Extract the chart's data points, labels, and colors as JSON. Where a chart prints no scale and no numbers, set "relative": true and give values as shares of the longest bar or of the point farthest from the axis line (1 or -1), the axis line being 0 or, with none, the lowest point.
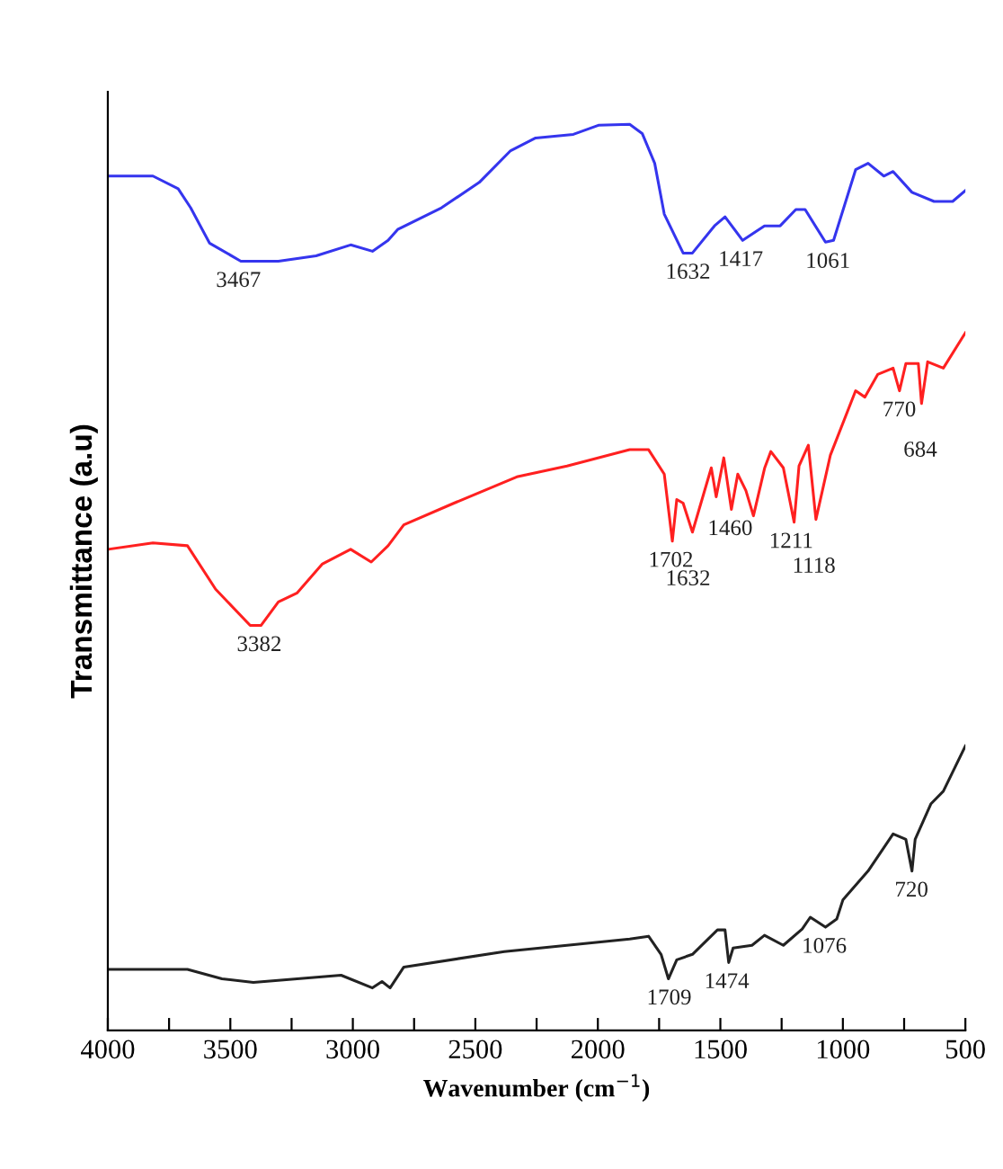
{
  "chart_data": {
    "type": "line",
    "relative": true,
    "xlabel": "Wavenumber (cm$^{−1}$)",
    "ylabel": "Transmittance (a.u)",
    "xlim": [
      4000,
      500
    ],
    "xticks": [
      4000,
      {
        "value": 3750,
        "label": null
      },
      3500,
      {
        "value": 3250,
        "label": null
      },
      3000,
      {
        "value": 2750,
        "label": null
      },
      2500,
      {
        "value": 2250,
        "label": null
      },
      2000,
      {
        "value": 1750,
        "label": null
      },
      1500,
      {
        "value": 1250,
        "label": null
      },
      1000,
      {
        "value": 750,
        "label": null
      },
      500
    ],
    "tick_labels": "x",
    "grid": false,
    "legend": false,
    "line_style": "solid",
    "marker": "none",
    "series": [
      {
        "color": "#3535ee",
        "x": [
          4000,
          3816,
          3713,
          3662,
          3585,
          3457,
          3304,
          3150,
          3009,
          2920,
          2856,
          2817,
          2638,
          2484,
          2356,
          2254,
          2100,
          1998,
          1870,
          1819,
          1768,
          1729,
          1652,
          1614,
          1524,
          1481,
          1409,
          1320,
          1256,
          1192,
          1154,
          1071,
          1038,
          948,
          897,
          833,
          795,
          718,
          628,
          552,
          500
        ],
        "values": [
          0.943,
          0.943,
          0.929,
          0.908,
          0.869,
          0.849,
          0.849,
          0.855,
          0.867,
          0.86,
          0.872,
          0.884,
          0.908,
          0.936,
          0.971,
          0.985,
          0.989,
          0.999,
          1.0,
          0.99,
          0.957,
          0.901,
          0.858,
          0.858,
          0.888,
          0.898,
          0.872,
          0.888,
          0.888,
          0.906,
          0.906,
          0.87,
          0.872,
          0.95,
          0.957,
          0.943,
          0.948,
          0.925,
          0.915,
          0.915,
          0.927
        ]
      },
      {
        "color": "#ff2020",
        "x": [
          4000,
          3816,
          3675,
          3560,
          3419,
          3375,
          3304,
          3227,
          3124,
          3009,
          2925,
          2856,
          2792,
          2587,
          2331,
          2126,
          1870,
          1793,
          1729,
          1696,
          1678,
          1652,
          1614,
          1537,
          1517,
          1486,
          1455,
          1429,
          1396,
          1365,
          1319,
          1294,
          1243,
          1199,
          1179,
          1141,
          1110,
          1051,
          948,
          910,
          858,
          795,
          769,
          743,
          692,
          679,
          654,
          590,
          500
        ],
        "values": [
          0.531,
          0.538,
          0.535,
          0.487,
          0.447,
          0.447,
          0.473,
          0.483,
          0.515,
          0.531,
          0.517,
          0.535,
          0.558,
          0.582,
          0.611,
          0.623,
          0.641,
          0.641,
          0.614,
          0.54,
          0.586,
          0.582,
          0.55,
          0.621,
          0.589,
          0.632,
          0.575,
          0.614,
          0.596,
          0.568,
          0.621,
          0.639,
          0.621,
          0.561,
          0.623,
          0.646,
          0.564,
          0.635,
          0.706,
          0.699,
          0.724,
          0.731,
          0.706,
          0.736,
          0.736,
          0.692,
          0.738,
          0.731,
          0.77
        ]
      },
      {
        "color": "#222222",
        "x": [
          4000,
          3675,
          3534,
          3406,
          3048,
          2920,
          2881,
          2848,
          2792,
          2382,
          1870,
          1793,
          1742,
          1712,
          1678,
          1614,
          1512,
          1481,
          1466,
          1448,
          1371,
          1320,
          1243,
          1166,
          1133,
          1071,
          1025,
          1000,
          897,
          795,
          743,
          718,
          705,
          641,
          590,
          500
        ],
        "values": [
          0.0675,
          0.0675,
          0.057,
          0.053,
          0.061,
          0.047,
          0.054,
          0.047,
          0.07,
          0.087,
          0.101,
          0.104,
          0.084,
          0.057,
          0.078,
          0.084,
          0.111,
          0.111,
          0.075,
          0.091,
          0.094,
          0.105,
          0.094,
          0.112,
          0.125,
          0.114,
          0.123,
          0.144,
          0.176,
          0.217,
          0.211,
          0.176,
          0.211,
          0.25,
          0.264,
          0.314
        ]
      }
    ],
    "annotations": [
      {
        "text": "3467",
        "x": 3467,
        "y": 0.849
      },
      {
        "text": "1632",
        "x": 1632,
        "y": 0.858
      },
      {
        "text": "1417",
        "x": 1417,
        "y": 0.872
      },
      {
        "text": "1061",
        "x": 1061,
        "y": 0.87
      },
      {
        "text": "3382",
        "x": 3382,
        "y": 0.447
      },
      {
        "text": "1702",
        "x": 1702,
        "y": 0.54
      },
      {
        "text": "1632",
        "x": 1632,
        "y": 0.55
      },
      {
        "text": "1460",
        "x": 1460,
        "y": 0.575
      },
      {
        "text": "1211",
        "x": 1211,
        "y": 0.561
      },
      {
        "text": "1118",
        "x": 1118,
        "y": 0.564
      },
      {
        "text": "770",
        "x": 770,
        "y": 0.706
      },
      {
        "text": "684",
        "x": 684,
        "y": 0.692
      },
      {
        "text": "1709",
        "x": 1709,
        "y": 0.057
      },
      {
        "text": "1474",
        "x": 1474,
        "y": 0.075
      },
      {
        "text": "1076",
        "x": 1076,
        "y": 0.114
      },
      {
        "text": "720",
        "x": 720,
        "y": 0.176
      }
    ]
  }
}
